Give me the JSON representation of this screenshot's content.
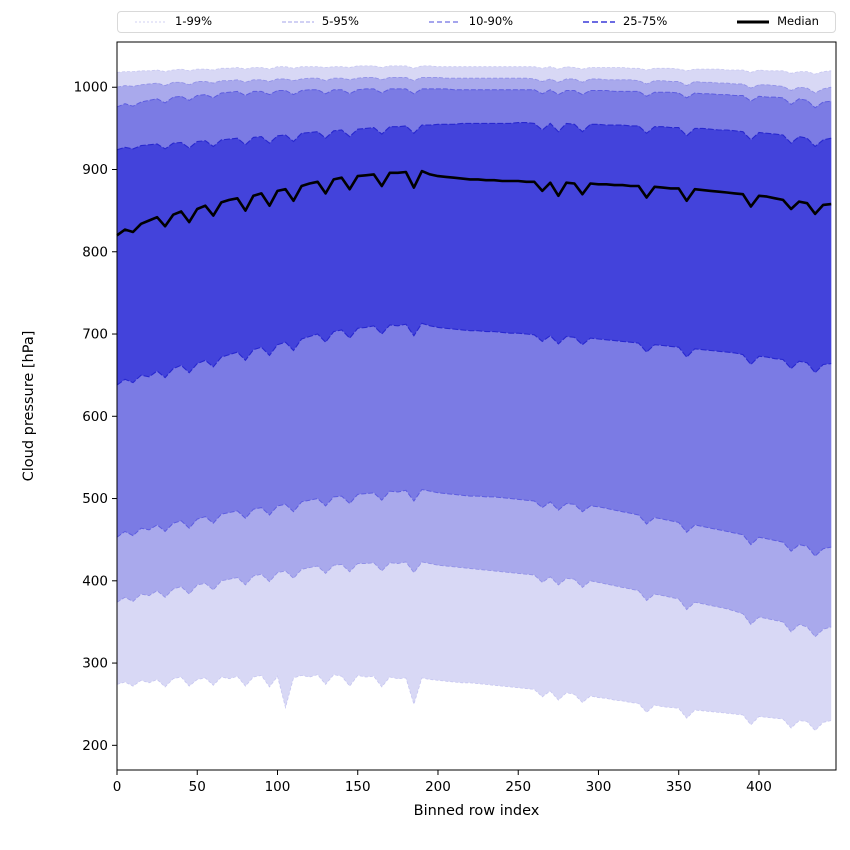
{
  "legend": {
    "items": [
      {
        "label": "1-99%",
        "color": "#d2d2f3",
        "dash": "2,2",
        "width": 1
      },
      {
        "label": "5-95%",
        "color": "#a3a3ea",
        "dash": "4,2",
        "width": 1
      },
      {
        "label": "10-90%",
        "color": "#6f6fe2",
        "dash": "5,3",
        "width": 1.2
      },
      {
        "label": "25-75%",
        "color": "#3a3ad8",
        "dash": "6,3",
        "width": 1.4
      },
      {
        "label": "Median",
        "color": "#000000",
        "dash": "",
        "width": 3
      }
    ]
  },
  "chart_data": {
    "type": "area",
    "title": "",
    "xlabel": "Binned row index",
    "ylabel": "Cloud pressure [hPa]",
    "xlim": [
      0,
      448
    ],
    "ylim": [
      170,
      1055
    ],
    "xticks": [
      0,
      50,
      100,
      150,
      200,
      250,
      300,
      350,
      400
    ],
    "yticks": [
      200,
      300,
      400,
      500,
      600,
      700,
      800,
      900,
      1000
    ],
    "grid": false,
    "legend_position": "top",
    "x": [
      0,
      5,
      10,
      15,
      20,
      25,
      30,
      35,
      40,
      45,
      50,
      55,
      60,
      65,
      70,
      75,
      80,
      85,
      90,
      95,
      100,
      105,
      110,
      115,
      120,
      125,
      130,
      135,
      140,
      145,
      150,
      155,
      160,
      165,
      170,
      175,
      180,
      185,
      190,
      195,
      200,
      205,
      210,
      215,
      220,
      225,
      230,
      235,
      240,
      245,
      250,
      255,
      260,
      265,
      270,
      275,
      280,
      285,
      290,
      295,
      300,
      305,
      310,
      315,
      320,
      325,
      330,
      335,
      340,
      345,
      350,
      355,
      360,
      365,
      370,
      375,
      380,
      385,
      390,
      395,
      400,
      405,
      410,
      415,
      420,
      425,
      430,
      435,
      440,
      445
    ],
    "percentiles": {
      "p01": [
        274,
        277,
        272,
        279,
        276,
        280,
        271,
        281,
        283,
        272,
        280,
        282,
        273,
        283,
        281,
        284,
        272,
        283,
        285,
        271,
        284,
        246,
        282,
        285,
        283,
        286,
        274,
        286,
        284,
        272,
        285,
        283,
        284,
        271,
        283,
        281,
        282,
        250,
        282,
        280,
        279,
        278,
        277,
        276,
        276,
        275,
        274,
        273,
        272,
        271,
        270,
        269,
        268,
        259,
        266,
        255,
        264,
        262,
        252,
        260,
        258,
        257,
        255,
        254,
        252,
        251,
        240,
        249,
        247,
        246,
        245,
        233,
        243,
        242,
        241,
        240,
        239,
        238,
        237,
        225,
        235,
        234,
        233,
        232,
        221,
        230,
        229,
        218,
        228,
        230
      ],
      "p05": [
        374,
        380,
        375,
        384,
        382,
        388,
        380,
        390,
        393,
        384,
        395,
        397,
        389,
        400,
        402,
        404,
        395,
        406,
        408,
        399,
        410,
        412,
        403,
        414,
        416,
        418,
        409,
        419,
        420,
        411,
        421,
        421,
        422,
        412,
        422,
        421,
        423,
        410,
        423,
        421,
        419,
        418,
        417,
        416,
        415,
        414,
        413,
        412,
        411,
        410,
        409,
        408,
        407,
        398,
        405,
        395,
        403,
        402,
        392,
        400,
        398,
        396,
        394,
        392,
        390,
        388,
        376,
        384,
        382,
        380,
        378,
        365,
        374,
        372,
        370,
        368,
        366,
        363,
        360,
        347,
        356,
        354,
        352,
        350,
        338,
        347,
        344,
        332,
        341,
        344
      ],
      "p10": [
        453,
        460,
        455,
        464,
        462,
        468,
        460,
        470,
        473,
        464,
        475,
        478,
        470,
        481,
        483,
        485,
        476,
        487,
        489,
        480,
        491,
        493,
        484,
        496,
        498,
        500,
        491,
        502,
        503,
        494,
        505,
        506,
        507,
        498,
        509,
        508,
        510,
        497,
        511,
        509,
        507,
        506,
        505,
        504,
        503,
        503,
        502,
        502,
        501,
        500,
        499,
        498,
        497,
        489,
        496,
        486,
        494,
        493,
        484,
        491,
        490,
        488,
        486,
        484,
        482,
        480,
        469,
        477,
        475,
        473,
        471,
        459,
        468,
        466,
        464,
        462,
        460,
        458,
        456,
        444,
        453,
        451,
        449,
        447,
        436,
        444,
        442,
        430,
        439,
        441
      ],
      "p25": [
        638,
        645,
        641,
        650,
        648,
        655,
        647,
        658,
        662,
        653,
        664,
        668,
        660,
        672,
        675,
        678,
        668,
        681,
        684,
        674,
        687,
        690,
        680,
        694,
        697,
        700,
        690,
        703,
        705,
        695,
        707,
        708,
        710,
        700,
        711,
        710,
        712,
        698,
        713,
        710,
        708,
        707,
        706,
        705,
        704,
        704,
        703,
        703,
        702,
        701,
        701,
        700,
        699,
        691,
        698,
        688,
        697,
        696,
        687,
        695,
        694,
        693,
        692,
        691,
        690,
        689,
        678,
        687,
        686,
        685,
        684,
        672,
        682,
        681,
        680,
        679,
        678,
        677,
        675,
        663,
        673,
        672,
        670,
        669,
        658,
        667,
        665,
        653,
        663,
        664
      ],
      "p50": [
        820,
        827,
        824,
        834,
        838,
        842,
        831,
        845,
        849,
        836,
        852,
        856,
        844,
        860,
        863,
        865,
        850,
        868,
        871,
        856,
        874,
        876,
        862,
        880,
        883,
        885,
        871,
        888,
        890,
        876,
        892,
        893,
        894,
        880,
        896,
        896,
        897,
        878,
        898,
        894,
        892,
        891,
        890,
        889,
        888,
        888,
        887,
        887,
        886,
        886,
        886,
        885,
        885,
        874,
        884,
        868,
        884,
        883,
        870,
        883,
        882,
        882,
        881,
        881,
        880,
        880,
        866,
        879,
        878,
        877,
        877,
        862,
        876,
        875,
        874,
        873,
        872,
        871,
        870,
        855,
        868,
        867,
        865,
        863,
        852,
        861,
        859,
        846,
        857,
        858
      ],
      "p75": [
        924,
        927,
        925,
        929,
        930,
        931,
        925,
        932,
        933,
        926,
        934,
        935,
        928,
        936,
        937,
        938,
        930,
        939,
        940,
        932,
        941,
        942,
        934,
        944,
        945,
        946,
        938,
        947,
        948,
        940,
        949,
        950,
        951,
        943,
        952,
        952,
        953,
        944,
        954,
        954,
        955,
        955,
        955,
        956,
        956,
        956,
        956,
        956,
        956,
        956,
        957,
        957,
        956,
        948,
        956,
        946,
        956,
        955,
        946,
        955,
        955,
        954,
        954,
        954,
        953,
        953,
        944,
        952,
        952,
        951,
        951,
        941,
        950,
        950,
        949,
        948,
        948,
        947,
        946,
        936,
        945,
        944,
        943,
        942,
        932,
        940,
        938,
        928,
        936,
        938
      ],
      "p90": [
        976,
        980,
        977,
        982,
        984,
        986,
        981,
        988,
        989,
        984,
        990,
        991,
        987,
        993,
        994,
        995,
        990,
        995,
        995,
        991,
        996,
        996,
        991,
        996,
        997,
        997,
        992,
        997,
        997,
        992,
        997,
        998,
        998,
        993,
        998,
        998,
        998,
        992,
        998,
        998,
        998,
        998,
        997,
        997,
        997,
        997,
        997,
        997,
        997,
        997,
        997,
        997,
        997,
        992,
        997,
        991,
        996,
        996,
        991,
        996,
        996,
        996,
        995,
        995,
        995,
        995,
        989,
        994,
        994,
        994,
        993,
        987,
        993,
        992,
        992,
        991,
        991,
        990,
        990,
        983,
        989,
        988,
        988,
        987,
        979,
        986,
        984,
        975,
        982,
        983
      ],
      "p95": [
        1000,
        1002,
        1001,
        1003,
        1004,
        1005,
        1002,
        1006,
        1006,
        1003,
        1007,
        1007,
        1005,
        1008,
        1008,
        1009,
        1006,
        1009,
        1009,
        1007,
        1010,
        1010,
        1008,
        1010,
        1011,
        1011,
        1008,
        1011,
        1011,
        1009,
        1011,
        1012,
        1012,
        1009,
        1012,
        1012,
        1012,
        1008,
        1012,
        1012,
        1012,
        1011,
        1011,
        1011,
        1011,
        1011,
        1011,
        1011,
        1011,
        1011,
        1011,
        1011,
        1010,
        1007,
        1010,
        1006,
        1010,
        1010,
        1006,
        1010,
        1010,
        1009,
        1009,
        1009,
        1009,
        1008,
        1004,
        1008,
        1008,
        1007,
        1007,
        1002,
        1007,
        1006,
        1006,
        1005,
        1005,
        1004,
        1004,
        999,
        1003,
        1003,
        1002,
        1001,
        996,
        1000,
        999,
        993,
        998,
        1000
      ],
      "p99": [
        1018,
        1019,
        1019,
        1020,
        1020,
        1021,
        1019,
        1021,
        1022,
        1020,
        1022,
        1022,
        1021,
        1023,
        1023,
        1024,
        1022,
        1024,
        1024,
        1022,
        1025,
        1025,
        1023,
        1025,
        1025,
        1025,
        1024,
        1025,
        1025,
        1024,
        1026,
        1026,
        1026,
        1024,
        1026,
        1026,
        1026,
        1023,
        1026,
        1026,
        1025,
        1025,
        1025,
        1025,
        1025,
        1025,
        1025,
        1025,
        1025,
        1025,
        1025,
        1025,
        1025,
        1023,
        1025,
        1022,
        1025,
        1024,
        1022,
        1024,
        1024,
        1024,
        1024,
        1024,
        1023,
        1023,
        1021,
        1023,
        1023,
        1023,
        1022,
        1020,
        1022,
        1022,
        1022,
        1022,
        1021,
        1021,
        1021,
        1018,
        1021,
        1020,
        1020,
        1020,
        1017,
        1019,
        1019,
        1016,
        1019,
        1020
      ]
    },
    "bands": [
      {
        "label": "1-99%",
        "lower": "p01",
        "upper": "p99",
        "fill": "#d8d8f5",
        "line": "#c6c6f1",
        "dash": "3,2",
        "line_width": 0.8
      },
      {
        "label": "5-95%",
        "lower": "p05",
        "upper": "p95",
        "fill": "#a9a9ec",
        "line": "#9292e7",
        "dash": "4,2",
        "line_width": 0.9
      },
      {
        "label": "10-90%",
        "lower": "p10",
        "upper": "p90",
        "fill": "#7b7be4",
        "line": "#5d5ddf",
        "dash": "5,2",
        "line_width": 1
      },
      {
        "label": "25-75%",
        "lower": "p25",
        "upper": "p75",
        "fill": "#4343db",
        "line": "#2828cf",
        "dash": "6,2",
        "line_width": 1.1
      }
    ],
    "median": {
      "label": "Median",
      "color": "#000000",
      "width": 2.6
    }
  }
}
